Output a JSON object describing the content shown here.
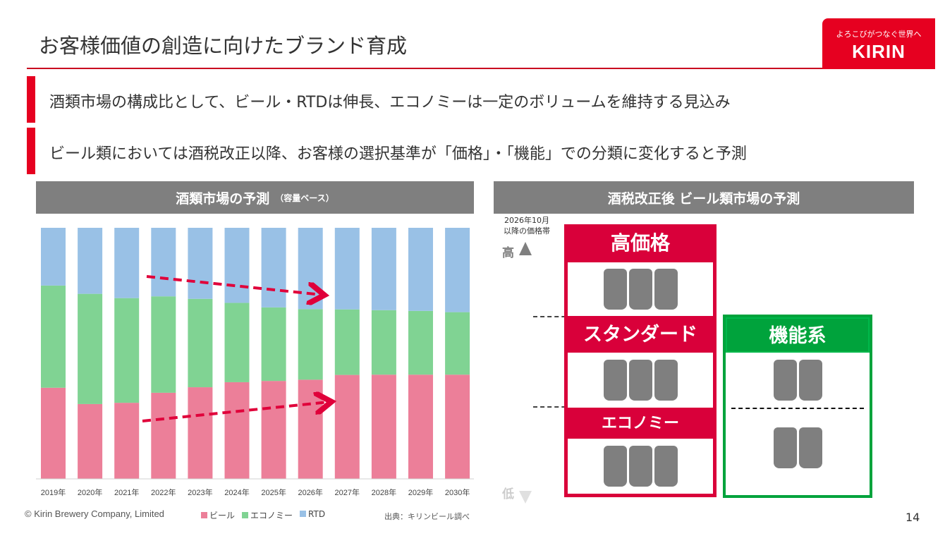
{
  "slide": {
    "title": "お客様価値の創造に向けたブランド育成",
    "logo": {
      "tagline": "よろこびがつなぐ世界へ",
      "brand": "KIRIN"
    },
    "bullets": [
      "酒類市場の構成比として、ビール・RTDは伸長、エコノミーは一定のボリュームを維持する見込み",
      "ビール類においては酒税改正以降、お客様の選択基準が「価格」・「機能」での分類に変化すると予測"
    ],
    "footer": {
      "copyright": "© Kirin Brewery Company, Limited",
      "source": "出典：キリンビール調べ",
      "page": "14"
    },
    "colors": {
      "brand_red": "#e60020",
      "tier_red": "#d9003a",
      "functional_green": "#00a33c",
      "header_gray": "#7f7f7f"
    }
  },
  "chart_data": {
    "type": "bar",
    "stacked": true,
    "title": "酒類市場の予測",
    "subtitle": "（容量ベース）",
    "categories": [
      "2019年",
      "2020年",
      "2021年",
      "2022年",
      "2023年",
      "2024年",
      "2025年",
      "2026年",
      "2027年",
      "2028年",
      "2029年",
      "2030年"
    ],
    "series": [
      {
        "name": "ビール",
        "color": "#ec7f99",
        "values": [
          36.3,
          29.8,
          30.3,
          34.3,
          36.5,
          38.5,
          39.0,
          39.5,
          41.4,
          41.5,
          41.5,
          41.5
        ]
      },
      {
        "name": "エコノミー",
        "color": "#80d393",
        "values": [
          40.7,
          43.9,
          41.7,
          38.4,
          35.2,
          31.6,
          29.3,
          28.1,
          26.1,
          25.7,
          25.4,
          24.9
        ]
      },
      {
        "name": "RTD",
        "color": "#99c1e6",
        "values": [
          23.0,
          26.3,
          28.0,
          27.3,
          28.3,
          29.9,
          31.7,
          32.4,
          32.5,
          32.8,
          33.1,
          33.6
        ]
      }
    ],
    "ylim": [
      0,
      100
    ],
    "legend": "bottom",
    "grid": false,
    "annotations": [
      "dashed red arrow: RTD share rising 2022→2027",
      "dashed red arrow: beer share rising 2021→2027"
    ]
  },
  "diagram": {
    "title": "酒税改正後 ビール類市場の予測",
    "axis_label": [
      "2026年10月",
      "以降の価格帯"
    ],
    "axis_high": "高",
    "axis_low": "低",
    "tiers": [
      {
        "label": "高価格",
        "cans": 3
      },
      {
        "label": "スタンダード",
        "cans": 3
      },
      {
        "label": "エコノミー",
        "cans": 3
      }
    ],
    "functional": {
      "label": "機能系",
      "cans_upper": 2,
      "cans_lower": 2
    }
  }
}
